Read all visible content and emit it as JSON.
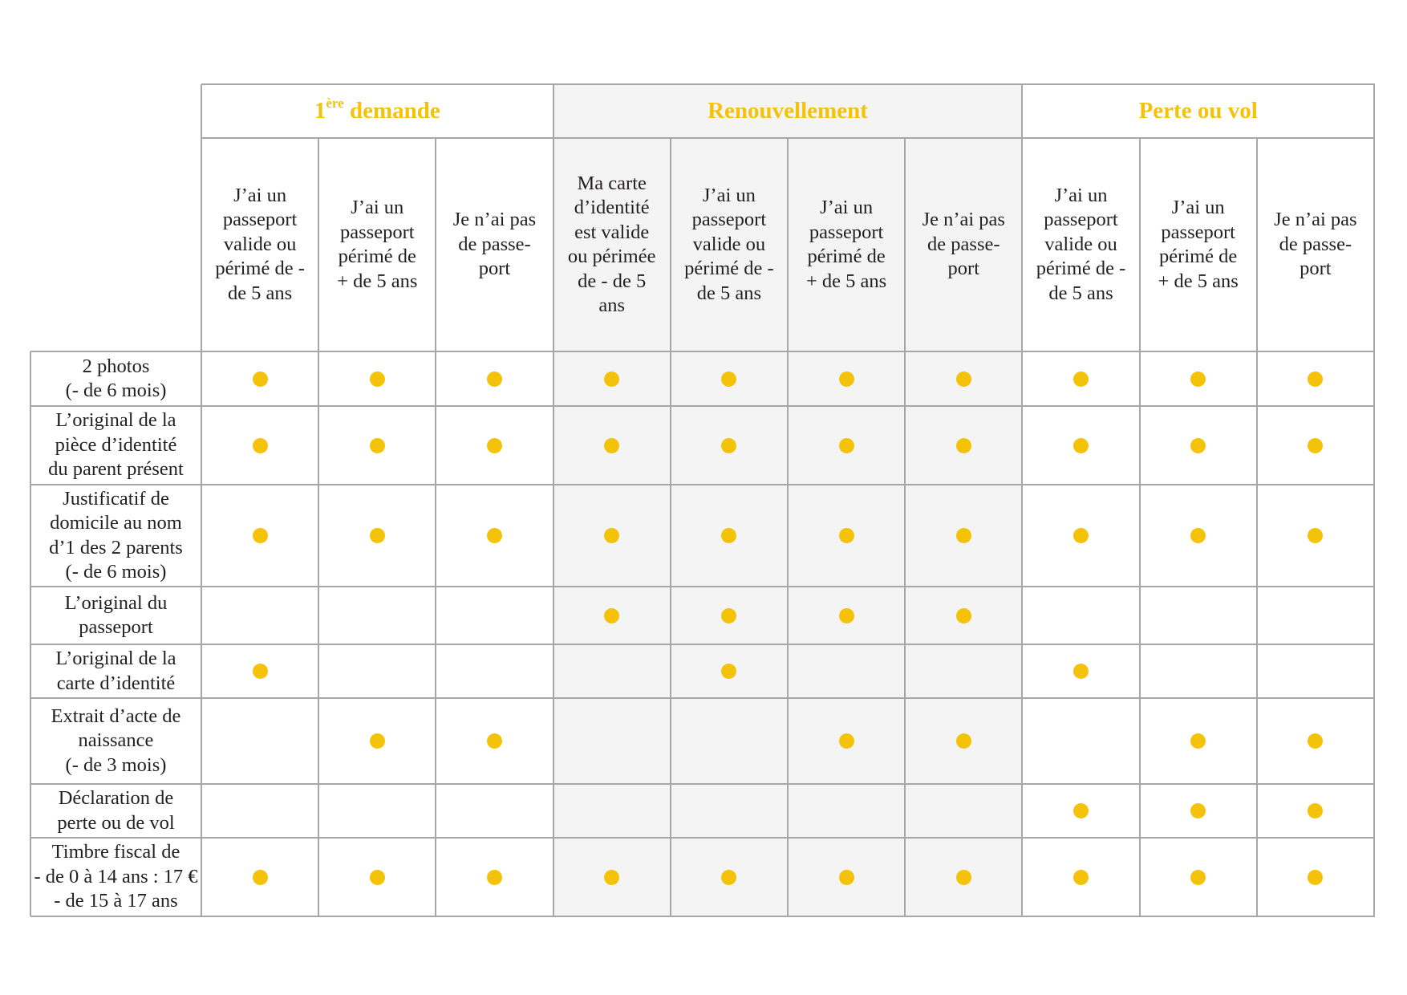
{
  "colors": {
    "accent": "#f5c20a",
    "border": "#a7a7a7",
    "shaded": "#f4f4f4",
    "text": "#231f20"
  },
  "groups": [
    {
      "label": "1",
      "sup": "ère",
      "rest": " demande",
      "span": 3,
      "shaded": false
    },
    {
      "label": "Renouvellement",
      "span": 4,
      "shaded": true
    },
    {
      "label": "Perte ou vol",
      "span": 3,
      "shaded": false
    }
  ],
  "columns": [
    "J’ai un\npasseport\nvalide ou\npérimé de -\nde 5 ans",
    "J’ai un\npasseport\npérimé de\n+ de 5 ans",
    "Je n’ai pas\nde passe-\nport",
    "Ma carte\nd’identité\nest valide\nou périmée\nde - de 5\nans",
    "J’ai un\npasseport\nvalide ou\npérimé de -\nde 5 ans",
    "J’ai un\npasseport\npérimé de\n+ de 5 ans",
    "Je n’ai pas\nde passe-\nport",
    "J’ai un\npasseport\nvalide ou\npérimé de -\nde 5 ans",
    "J’ai un\npasseport\npérimé de\n+ de 5 ans",
    "Je n’ai pas\nde passe-\nport"
  ],
  "rows": [
    {
      "label": "2 photos\n(- de 6 mois)",
      "required": [
        1,
        1,
        1,
        1,
        1,
        1,
        1,
        1,
        1,
        1
      ]
    },
    {
      "label": "L’original de la\npièce d’identité\ndu parent présent",
      "required": [
        1,
        1,
        1,
        1,
        1,
        1,
        1,
        1,
        1,
        1
      ]
    },
    {
      "label": "Justificatif de\ndomicile au nom\nd’1 des 2 parents\n(- de 6 mois)",
      "required": [
        1,
        1,
        1,
        1,
        1,
        1,
        1,
        1,
        1,
        1
      ]
    },
    {
      "label": "L’original du\npasseport",
      "required": [
        0,
        0,
        0,
        1,
        1,
        1,
        1,
        0,
        0,
        0
      ]
    },
    {
      "label": "L’original de la\ncarte d’identité",
      "required": [
        1,
        0,
        0,
        0,
        1,
        0,
        0,
        1,
        0,
        0
      ]
    },
    {
      "label": "Extrait d’acte de\nnaissance\n(- de 3 mois)",
      "required": [
        0,
        1,
        1,
        0,
        0,
        1,
        1,
        0,
        1,
        1
      ]
    },
    {
      "label": "Déclaration de\nperte ou de vol",
      "required": [
        0,
        0,
        0,
        0,
        0,
        0,
        0,
        1,
        1,
        1
      ]
    },
    {
      "label": "Timbre fiscal de\n- de 0 à 14 ans : 17 €\n- de 15 à 17 ans",
      "required": [
        1,
        1,
        1,
        1,
        1,
        1,
        1,
        1,
        1,
        1
      ]
    }
  ]
}
